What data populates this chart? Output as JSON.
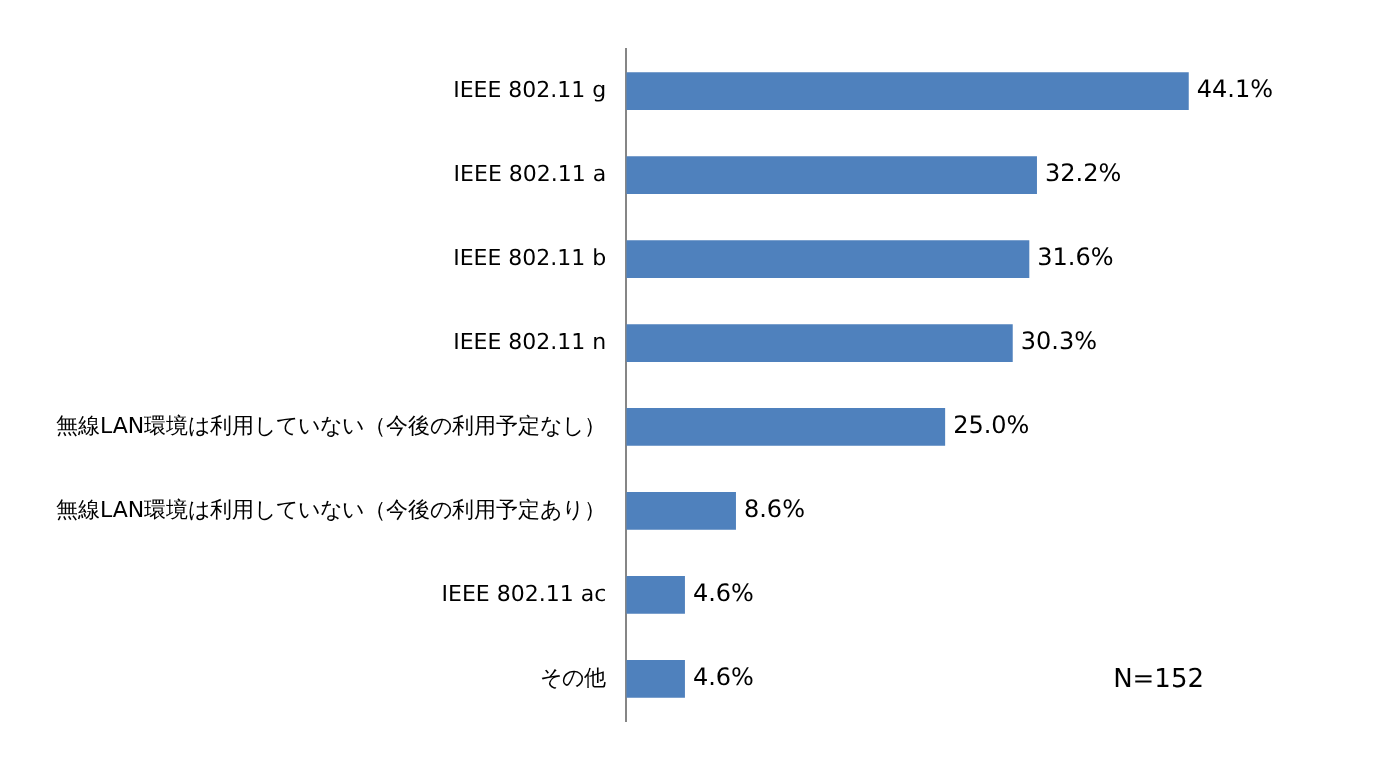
{
  "chart_data": {
    "type": "bar",
    "orientation": "horizontal",
    "categories": [
      "IEEE 802.11 g",
      "IEEE 802.11 a",
      "IEEE 802.11 b",
      "IEEE 802.11 n",
      "無線LAN環境は利用していない（今後の利用予定なし）",
      "無線LAN環境は利用していない（今後の利用予定あり）",
      "IEEE 802.11 ac",
      "その他"
    ],
    "values": [
      44.1,
      32.2,
      31.6,
      30.3,
      25.0,
      8.6,
      4.6,
      4.6
    ],
    "value_labels": [
      "44.1%",
      "32.2%",
      "31.6%",
      "30.3%",
      "25.0%",
      "8.6%",
      "4.6%",
      "4.6%"
    ],
    "color": "#4f81bd",
    "tick_labels": "y",
    "grid": false,
    "legend": false,
    "annotations": [
      "N=152"
    ]
  }
}
